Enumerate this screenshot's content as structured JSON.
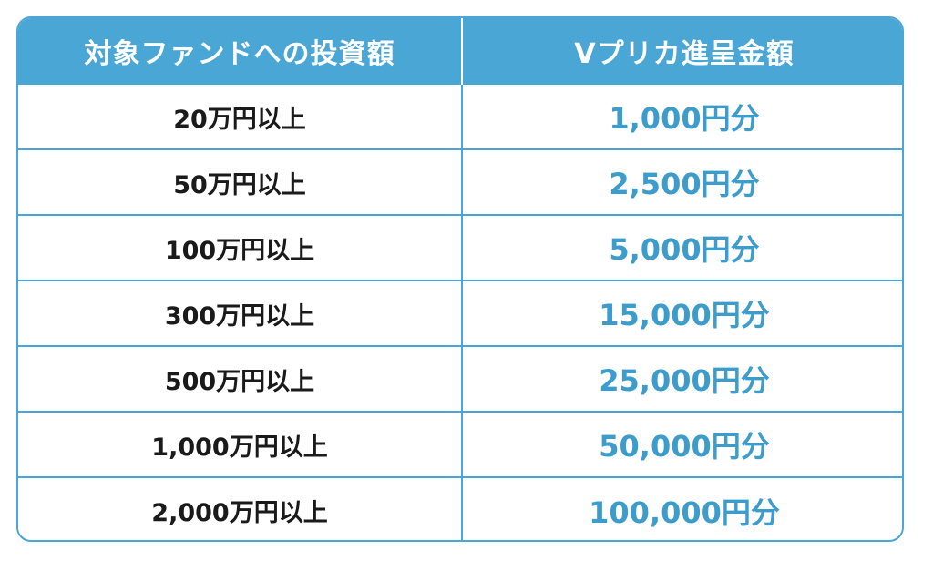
{
  "table": {
    "headers": [
      "対象ファンドへの投資額",
      "Vプリカ進呈金額"
    ],
    "rows": [
      [
        "20万円以上",
        "1,000円分"
      ],
      [
        "50万円以上",
        "2,500円分"
      ],
      [
        "100万円以上",
        "5,000円分"
      ],
      [
        "300万円以上",
        "15,000円分"
      ],
      [
        "500万円以上",
        "25,000円分"
      ],
      [
        "1,000万円以上",
        "50,000円分"
      ],
      [
        "2,000万円以上",
        "100,000円分"
      ]
    ]
  },
  "colors": {
    "header_bg": "#4aa6d4",
    "border": "#4aa6d4",
    "amount_text": "#3c9dcc",
    "threshold_text": "#1a1a1a"
  }
}
